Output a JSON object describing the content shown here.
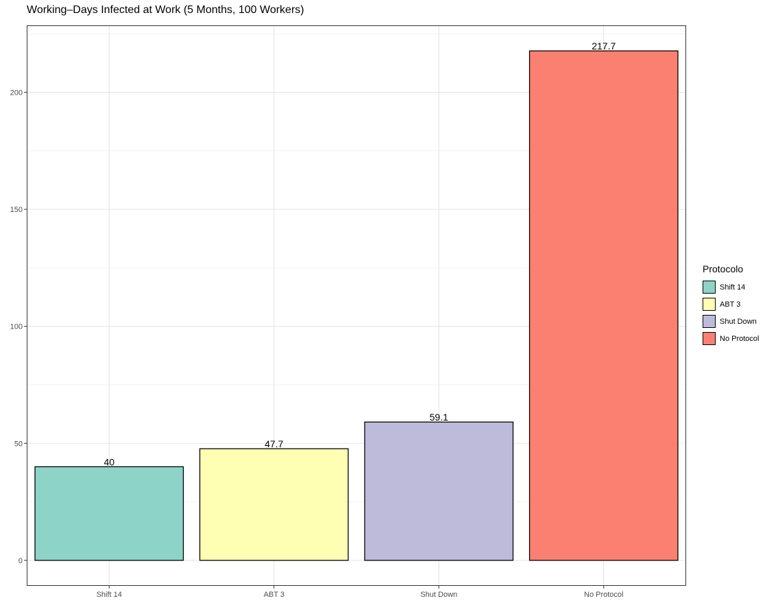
{
  "chart_data": {
    "type": "bar",
    "title": "Working–Days Infected at Work (5 Months, 100 Workers)",
    "xlabel": "",
    "ylabel": "",
    "categories": [
      "Shift 14",
      "ABT 3",
      "Shut Down",
      "No Protocol"
    ],
    "values": [
      40,
      47.7,
      59.1,
      217.7
    ],
    "value_labels": [
      "40",
      "47.7",
      "59.1",
      "217.7"
    ],
    "colors": [
      "#8dd3c7",
      "#ffffb3",
      "#bebada",
      "#fb8072"
    ],
    "ylim": [
      -10.9,
      228.6
    ],
    "yticks": [
      0,
      50,
      100,
      150,
      200
    ],
    "grid": true,
    "legend": {
      "title": "Protocolo",
      "placement": "right",
      "entries": [
        "Shift 14",
        "ABT 3",
        "Shut Down",
        "No Protocol"
      ]
    }
  }
}
